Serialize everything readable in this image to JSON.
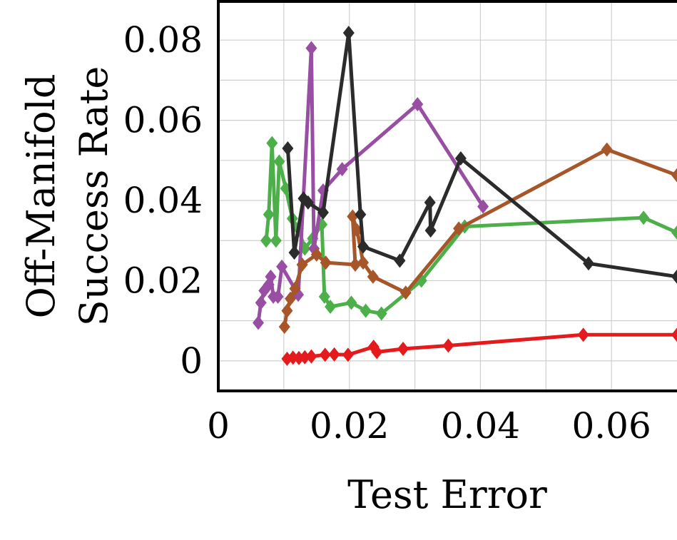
{
  "chart_data": {
    "type": "line",
    "title": "",
    "xlabel": "Test Error",
    "ylabel_lines": [
      "Off-Manifold",
      "Success Rate"
    ],
    "xlim": [
      0,
      0.07
    ],
    "ylim": [
      -0.0075,
      0.09
    ],
    "xticks": [
      0,
      0.02,
      0.04,
      0.06
    ],
    "xtick_labels": [
      "0",
      "0.02",
      "0.04",
      "0.06"
    ],
    "yticks": [
      0,
      0.02,
      0.04,
      0.06,
      0.08
    ],
    "ytick_labels": [
      "0",
      "0.02",
      "0.04",
      "0.06",
      "0.08"
    ],
    "minor_grid_step": 0.01,
    "grid": true,
    "legend": "none",
    "marker": "diamond",
    "series": [
      {
        "color": "#e41a1c",
        "points": [
          [
            0.0105,
            0.0005
          ],
          [
            0.0114,
            0.0008
          ],
          [
            0.0123,
            0.0007
          ],
          [
            0.0132,
            0.0009
          ],
          [
            0.0142,
            0.0011
          ],
          [
            0.0163,
            0.0015
          ],
          [
            0.0177,
            0.0016
          ],
          [
            0.0198,
            0.0015
          ],
          [
            0.0237,
            0.0035
          ],
          [
            0.0242,
            0.0022
          ],
          [
            0.0282,
            0.003
          ],
          [
            0.0351,
            0.0038
          ],
          [
            0.0557,
            0.0065
          ],
          [
            0.07,
            0.0065
          ]
        ]
      },
      {
        "color": "#4daf4a",
        "points": [
          [
            0.0073,
            0.03
          ],
          [
            0.0077,
            0.0365
          ],
          [
            0.0082,
            0.0543
          ],
          [
            0.0088,
            0.03
          ],
          [
            0.0093,
            0.0497
          ],
          [
            0.0103,
            0.043
          ],
          [
            0.0113,
            0.0355
          ],
          [
            0.0122,
            0.033
          ],
          [
            0.0132,
            0.028
          ],
          [
            0.0144,
            0.0305
          ],
          [
            0.0158,
            0.034
          ],
          [
            0.0162,
            0.016
          ],
          [
            0.0171,
            0.0135
          ],
          [
            0.0203,
            0.0145
          ],
          [
            0.0225,
            0.0125
          ],
          [
            0.0249,
            0.0118
          ],
          [
            0.031,
            0.02
          ],
          [
            0.0376,
            0.0335
          ],
          [
            0.0649,
            0.0357
          ],
          [
            0.07,
            0.032
          ]
        ]
      },
      {
        "color": "#984ea3",
        "points": [
          [
            0.0061,
            0.0095
          ],
          [
            0.0065,
            0.0145
          ],
          [
            0.007,
            0.0175
          ],
          [
            0.0077,
            0.019
          ],
          [
            0.008,
            0.021
          ],
          [
            0.0084,
            0.016
          ],
          [
            0.0091,
            0.016
          ],
          [
            0.0097,
            0.0235
          ],
          [
            0.0122,
            0.0165
          ],
          [
            0.0142,
            0.078
          ],
          [
            0.0146,
            0.028
          ],
          [
            0.016,
            0.0425
          ],
          [
            0.0189,
            0.0478
          ],
          [
            0.0304,
            0.064
          ],
          [
            0.0404,
            0.0385
          ]
        ]
      },
      {
        "color": "#a65628",
        "points": [
          [
            0.0101,
            0.0085
          ],
          [
            0.0105,
            0.0125
          ],
          [
            0.011,
            0.0155
          ],
          [
            0.0117,
            0.018
          ],
          [
            0.0128,
            0.024
          ],
          [
            0.015,
            0.0265
          ],
          [
            0.0164,
            0.0245
          ],
          [
            0.0209,
            0.024
          ],
          [
            0.0205,
            0.036
          ],
          [
            0.0212,
            0.0325
          ],
          [
            0.0221,
            0.0245
          ],
          [
            0.0236,
            0.021
          ],
          [
            0.0286,
            0.017
          ],
          [
            0.0367,
            0.033
          ],
          [
            0.0593,
            0.0527
          ],
          [
            0.07,
            0.0463
          ]
        ]
      },
      {
        "color": "#2b2b2b",
        "points": [
          [
            0.0106,
            0.053
          ],
          [
            0.0116,
            0.027
          ],
          [
            0.013,
            0.0405
          ],
          [
            0.0137,
            0.0395
          ],
          [
            0.016,
            0.037
          ],
          [
            0.0199,
            0.0818
          ],
          [
            0.0217,
            0.0365
          ],
          [
            0.0221,
            0.0285
          ],
          [
            0.0277,
            0.025
          ],
          [
            0.0323,
            0.0395
          ],
          [
            0.0324,
            0.0325
          ],
          [
            0.037,
            0.0505
          ],
          [
            0.0565,
            0.0243
          ],
          [
            0.07,
            0.021
          ]
        ]
      }
    ]
  }
}
